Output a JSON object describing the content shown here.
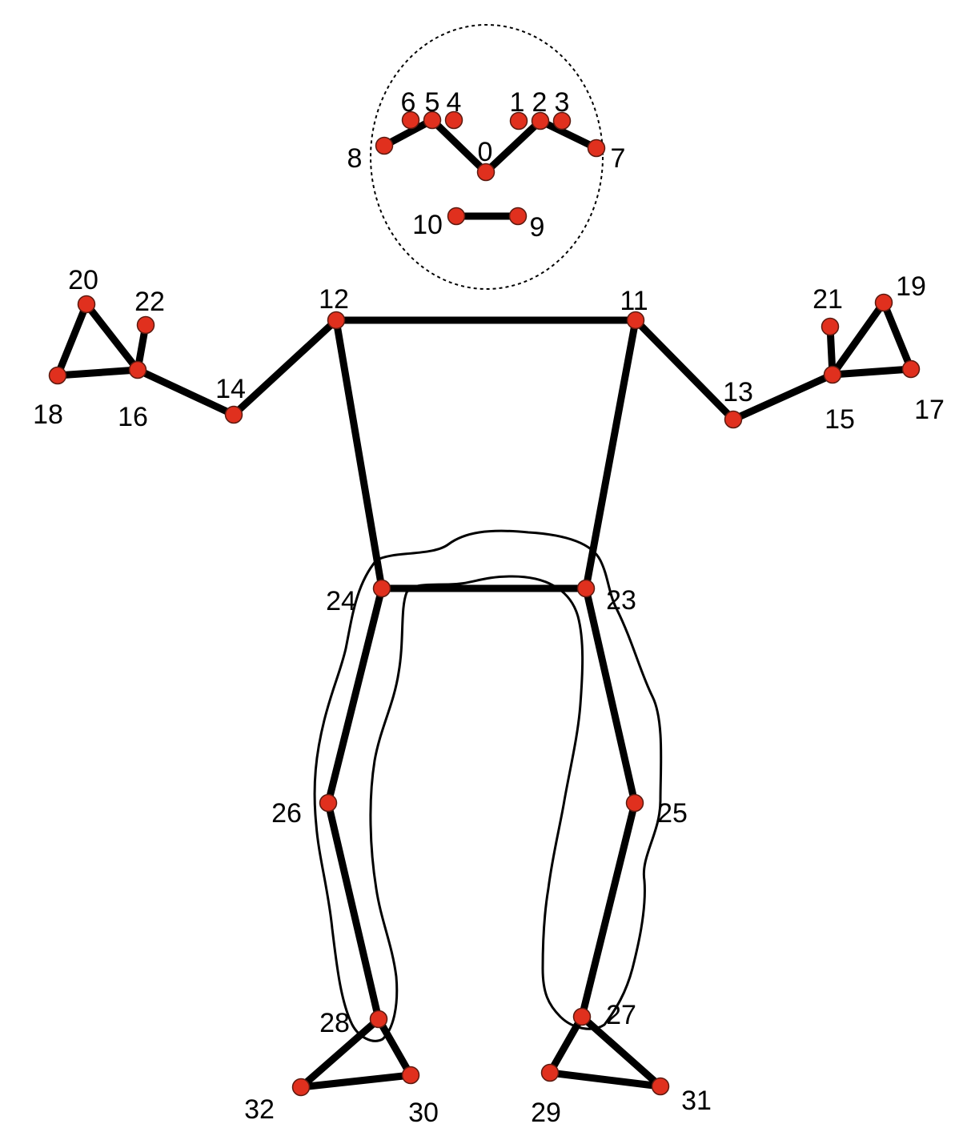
{
  "colors": {
    "joint_fill": "#e0301e",
    "bone": "#000000",
    "background": "#ffffff"
  },
  "landmarks": [
    {
      "id": "0",
      "label": "0"
    },
    {
      "id": "1",
      "label": "1"
    },
    {
      "id": "2",
      "label": "2"
    },
    {
      "id": "3",
      "label": "3"
    },
    {
      "id": "4",
      "label": "4"
    },
    {
      "id": "5",
      "label": "5"
    },
    {
      "id": "6",
      "label": "6"
    },
    {
      "id": "7",
      "label": "7"
    },
    {
      "id": "8",
      "label": "8"
    },
    {
      "id": "9",
      "label": "9"
    },
    {
      "id": "10",
      "label": "10"
    },
    {
      "id": "11",
      "label": "11"
    },
    {
      "id": "12",
      "label": "12"
    },
    {
      "id": "13",
      "label": "13"
    },
    {
      "id": "14",
      "label": "14"
    },
    {
      "id": "15",
      "label": "15"
    },
    {
      "id": "16",
      "label": "16"
    },
    {
      "id": "17",
      "label": "17"
    },
    {
      "id": "18",
      "label": "18"
    },
    {
      "id": "19",
      "label": "19"
    },
    {
      "id": "20",
      "label": "20"
    },
    {
      "id": "21",
      "label": "21"
    },
    {
      "id": "22",
      "label": "22"
    },
    {
      "id": "23",
      "label": "23"
    },
    {
      "id": "24",
      "label": "24"
    },
    {
      "id": "25",
      "label": "25"
    },
    {
      "id": "26",
      "label": "26"
    },
    {
      "id": "27",
      "label": "27"
    },
    {
      "id": "28",
      "label": "28"
    },
    {
      "id": "29",
      "label": "29"
    },
    {
      "id": "30",
      "label": "30"
    },
    {
      "id": "31",
      "label": "31"
    },
    {
      "id": "32",
      "label": "32"
    }
  ],
  "connections": [
    [
      "8",
      "5"
    ],
    [
      "5",
      "0"
    ],
    [
      "0",
      "2"
    ],
    [
      "2",
      "7"
    ],
    [
      "10",
      "9"
    ],
    [
      "12",
      "11"
    ],
    [
      "12",
      "24"
    ],
    [
      "11",
      "23"
    ],
    [
      "24",
      "23"
    ],
    [
      "12",
      "14"
    ],
    [
      "14",
      "16"
    ],
    [
      "16",
      "18"
    ],
    [
      "16",
      "20"
    ],
    [
      "18",
      "20"
    ],
    [
      "16",
      "22"
    ],
    [
      "11",
      "13"
    ],
    [
      "13",
      "15"
    ],
    [
      "15",
      "17"
    ],
    [
      "15",
      "19"
    ],
    [
      "17",
      "19"
    ],
    [
      "15",
      "21"
    ],
    [
      "24",
      "26"
    ],
    [
      "26",
      "28"
    ],
    [
      "28",
      "30"
    ],
    [
      "28",
      "32"
    ],
    [
      "30",
      "32"
    ],
    [
      "23",
      "25"
    ],
    [
      "25",
      "27"
    ],
    [
      "27",
      "29"
    ],
    [
      "27",
      "31"
    ],
    [
      "29",
      "31"
    ]
  ]
}
